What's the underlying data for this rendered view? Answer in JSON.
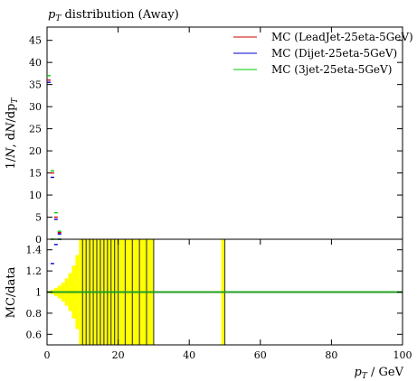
{
  "chart_data": [
    {
      "type": "line",
      "title": "pT distribution (Away)",
      "title_parts": {
        "main": "p",
        "sub": "T",
        "rest": " distribution (Away)"
      },
      "ylabel": "1/N dN/dpT",
      "ylabel_text": {
        "prefix": "1/",
        "n1": "N",
        "mid": ", d",
        "n2": "N",
        "suffix": "/dp",
        "sub": "T"
      },
      "ylim": [
        0,
        48
      ],
      "yticks": [
        0,
        5,
        10,
        15,
        20,
        25,
        30,
        35,
        40,
        45
      ],
      "yticks_labels": [
        "0",
        "5",
        "10",
        "15",
        "20",
        "25",
        "30",
        "35",
        "40",
        "45"
      ],
      "xlim": [
        0,
        100
      ],
      "legend_position": "top-right",
      "series": [
        {
          "name": "MC (LeadJet-25eta-5GeV)",
          "color": "#cc0000",
          "x": [
            0.5,
            1.5,
            2.5,
            3.5
          ],
          "y": [
            36,
            15,
            5,
            1.5
          ]
        },
        {
          "name": "MC (Dijet-25eta-5GeV)",
          "color": "#0000cc",
          "x": [
            0.5,
            1.5,
            2.5,
            3.5
          ],
          "y": [
            35.5,
            14,
            4.5,
            1.2
          ]
        },
        {
          "name": "MC (3jet-25eta-5GeV)",
          "color": "#00cc00",
          "x": [
            0.5,
            1.5,
            2.5,
            3.5
          ],
          "y": [
            37,
            15.5,
            6,
            1.8
          ]
        }
      ]
    },
    {
      "type": "line",
      "ylabel": "MC/data",
      "xlabel": "pT / GeV",
      "xlabel_text": {
        "p": "p",
        "sub": "T",
        "rest": " / GeV"
      },
      "ylim": [
        0.5,
        1.5
      ],
      "yticks": [
        0.6,
        0.8,
        1.0,
        1.2,
        1.4
      ],
      "yticks_labels": [
        "0.6",
        "0.8",
        "1",
        "1.2",
        "1.4"
      ],
      "xticks": [
        0,
        20,
        40,
        60,
        80,
        100
      ],
      "xticks_labels": [
        "0",
        "20",
        "40",
        "60",
        "80",
        "100"
      ],
      "ratio_line": 1.0,
      "series": [
        {
          "name": "MC (LeadJet-25eta-5GeV)",
          "color": "#cc0000",
          "x": [
            1.5,
            3.5
          ],
          "y": [
            1.5,
            1.5
          ]
        },
        {
          "name": "MC (Dijet-25eta-5GeV)",
          "color": "#0000cc",
          "x": [
            1.5,
            2.5,
            3.5
          ],
          "y": [
            1.27,
            1.45,
            1.5
          ]
        },
        {
          "name": "MC (3jet-25eta-5GeV)",
          "color": "#00cc00",
          "x": [
            1.5,
            2.5,
            3.5
          ],
          "y": [
            1.5,
            1.5,
            1.5
          ]
        }
      ],
      "data_uncertainty_band": {
        "color": "#ffff00",
        "x": [
          0.5,
          1.5,
          2.5,
          3.5,
          4.5,
          5.5,
          6.5,
          7.5,
          8.5,
          9.5,
          10.5,
          11.5,
          12.5,
          13.5,
          14.5,
          15.5,
          16.5,
          17.5,
          18.5,
          19.5,
          20.5,
          21.5,
          22.5,
          23.5,
          24.5,
          25.5,
          26.5,
          27.5,
          28.5,
          29.5,
          49.5
        ],
        "half_width": [
          0.01,
          0.02,
          0.04,
          0.06,
          0.09,
          0.13,
          0.18,
          0.25,
          0.35,
          0.5,
          0.5,
          0.5,
          0.5,
          0.5,
          0.5,
          0.5,
          0.5,
          0.5,
          0.5,
          0.5,
          0.5,
          0.5,
          0.5,
          0.5,
          0.5,
          0.5,
          0.5,
          0.5,
          0.5,
          0.5,
          0.5
        ]
      },
      "vertical_dividers_x": [
        10,
        11,
        12,
        13,
        14,
        15,
        16,
        17,
        18,
        19,
        20,
        22,
        24,
        26,
        28,
        30,
        50
      ]
    }
  ]
}
